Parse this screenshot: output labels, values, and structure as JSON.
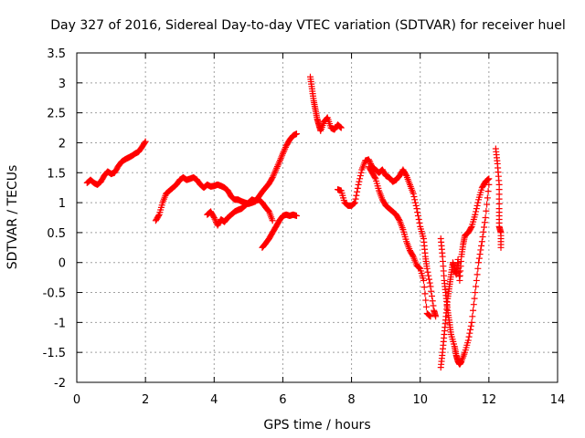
{
  "chart_data": {
    "type": "scatter",
    "title": "Day 327 of 2016, Sidereal Day-to-day VTEC variation (SDTVAR) for receiver huel",
    "xlabel": "GPS time / hours",
    "ylabel": "SDTVAR / TECUs",
    "xlim": [
      0,
      14
    ],
    "ylim": [
      -2,
      3.5
    ],
    "xticks": [
      0,
      2,
      4,
      6,
      8,
      10,
      12,
      14
    ],
    "yticks": [
      -2,
      -1.5,
      -1,
      -0.5,
      0,
      0.5,
      1,
      1.5,
      2,
      2.5,
      3,
      3.5
    ],
    "xtick_labels": [
      "0",
      "2",
      "4",
      "6",
      "8",
      "10",
      "12",
      "14"
    ],
    "ytick_labels": [
      "-2",
      "-1.5",
      "-1",
      "-0.5",
      "0",
      "0.5",
      "1",
      "1.5",
      "2",
      "2.5",
      "3",
      "3.5"
    ],
    "grid": true,
    "marker": "+",
    "color": "#ff0000",
    "series": [
      {
        "segments": [
          [
            [
              0.3,
              1.33
            ],
            [
              0.4,
              1.38
            ],
            [
              0.5,
              1.33
            ],
            [
              0.6,
              1.3
            ],
            [
              0.7,
              1.35
            ],
            [
              0.8,
              1.45
            ],
            [
              0.9,
              1.52
            ],
            [
              1.0,
              1.48
            ],
            [
              1.1,
              1.5
            ],
            [
              1.2,
              1.6
            ],
            [
              1.3,
              1.68
            ],
            [
              1.4,
              1.72
            ],
            [
              1.5,
              1.75
            ],
            [
              1.6,
              1.78
            ],
            [
              1.7,
              1.82
            ],
            [
              1.8,
              1.85
            ],
            [
              1.9,
              1.93
            ],
            [
              2.0,
              2.02
            ]
          ],
          [
            [
              2.3,
              0.7
            ],
            [
              2.4,
              0.8
            ],
            [
              2.5,
              1.0
            ],
            [
              2.6,
              1.15
            ],
            [
              2.7,
              1.2
            ],
            [
              2.8,
              1.25
            ],
            [
              2.9,
              1.3
            ],
            [
              3.0,
              1.38
            ],
            [
              3.1,
              1.42
            ],
            [
              3.2,
              1.38
            ],
            [
              3.3,
              1.4
            ],
            [
              3.4,
              1.42
            ],
            [
              3.5,
              1.38
            ],
            [
              3.6,
              1.3
            ],
            [
              3.7,
              1.25
            ],
            [
              3.8,
              1.3
            ],
            [
              3.9,
              1.27
            ],
            [
              4.0,
              1.28
            ],
            [
              4.1,
              1.3
            ],
            [
              4.2,
              1.28
            ],
            [
              4.3,
              1.25
            ],
            [
              4.4,
              1.2
            ],
            [
              4.5,
              1.1
            ],
            [
              4.6,
              1.05
            ],
            [
              4.7,
              1.05
            ],
            [
              4.8,
              1.02
            ],
            [
              4.9,
              1.0
            ],
            [
              5.0,
              0.98
            ],
            [
              5.1,
              1.0
            ],
            [
              5.2,
              1.02
            ],
            [
              5.3,
              1.1
            ],
            [
              5.4,
              1.18
            ],
            [
              5.5,
              1.25
            ],
            [
              5.6,
              1.32
            ],
            [
              5.7,
              1.42
            ],
            [
              5.8,
              1.55
            ],
            [
              5.9,
              1.68
            ],
            [
              6.0,
              1.82
            ],
            [
              6.1,
              1.95
            ],
            [
              6.2,
              2.05
            ],
            [
              6.3,
              2.12
            ],
            [
              6.4,
              2.15
            ]
          ],
          [
            [
              3.8,
              0.8
            ],
            [
              3.9,
              0.85
            ],
            [
              4.0,
              0.75
            ],
            [
              4.1,
              0.62
            ],
            [
              4.2,
              0.72
            ],
            [
              4.3,
              0.68
            ],
            [
              4.4,
              0.75
            ],
            [
              4.5,
              0.8
            ],
            [
              4.6,
              0.85
            ],
            [
              4.7,
              0.88
            ],
            [
              4.8,
              0.9
            ],
            [
              4.9,
              0.95
            ],
            [
              5.0,
              1.0
            ],
            [
              5.1,
              1.05
            ],
            [
              5.2,
              1.03
            ],
            [
              5.3,
              1.05
            ],
            [
              5.4,
              1.0
            ],
            [
              5.5,
              0.92
            ],
            [
              5.6,
              0.85
            ],
            [
              5.7,
              0.7
            ]
          ],
          [
            [
              5.4,
              0.25
            ],
            [
              5.5,
              0.32
            ],
            [
              5.6,
              0.4
            ],
            [
              5.7,
              0.5
            ],
            [
              5.8,
              0.6
            ],
            [
              5.9,
              0.7
            ],
            [
              6.0,
              0.78
            ],
            [
              6.1,
              0.8
            ],
            [
              6.2,
              0.78
            ],
            [
              6.3,
              0.8
            ],
            [
              6.4,
              0.78
            ]
          ],
          [
            [
              6.8,
              3.1
            ],
            [
              6.85,
              2.9
            ],
            [
              6.9,
              2.7
            ],
            [
              6.95,
              2.55
            ],
            [
              7.0,
              2.4
            ],
            [
              7.05,
              2.3
            ],
            [
              7.1,
              2.2
            ],
            [
              7.2,
              2.35
            ],
            [
              7.3,
              2.42
            ],
            [
              7.4,
              2.25
            ],
            [
              7.5,
              2.22
            ],
            [
              7.6,
              2.3
            ],
            [
              7.7,
              2.25
            ]
          ],
          [
            [
              7.6,
              1.22
            ],
            [
              7.7,
              1.2
            ],
            [
              7.8,
              1.0
            ],
            [
              7.9,
              0.95
            ],
            [
              8.0,
              0.95
            ],
            [
              8.1,
              1.0
            ],
            [
              8.2,
              1.3
            ],
            [
              8.3,
              1.55
            ],
            [
              8.4,
              1.7
            ],
            [
              8.5,
              1.72
            ],
            [
              8.6,
              1.6
            ],
            [
              8.7,
              1.55
            ],
            [
              8.8,
              1.5
            ],
            [
              8.9,
              1.55
            ],
            [
              9.0,
              1.45
            ],
            [
              9.1,
              1.42
            ],
            [
              9.2,
              1.35
            ],
            [
              9.3,
              1.38
            ],
            [
              9.4,
              1.45
            ],
            [
              9.5,
              1.55
            ],
            [
              9.6,
              1.45
            ],
            [
              9.7,
              1.3
            ],
            [
              9.8,
              1.15
            ],
            [
              9.9,
              0.9
            ],
            [
              10.0,
              0.6
            ],
            [
              10.1,
              0.4
            ],
            [
              10.15,
              0.1
            ],
            [
              10.2,
              -0.1
            ],
            [
              10.3,
              -0.4
            ],
            [
              10.4,
              -0.8
            ],
            [
              10.45,
              -0.9
            ]
          ],
          [
            [
              8.5,
              1.6
            ],
            [
              8.6,
              1.5
            ],
            [
              8.7,
              1.4
            ],
            [
              8.8,
              1.2
            ],
            [
              8.9,
              1.05
            ],
            [
              9.0,
              0.95
            ],
            [
              9.1,
              0.9
            ],
            [
              9.2,
              0.85
            ],
            [
              9.3,
              0.8
            ],
            [
              9.4,
              0.7
            ],
            [
              9.5,
              0.55
            ],
            [
              9.6,
              0.35
            ],
            [
              9.7,
              0.2
            ],
            [
              9.8,
              0.1
            ],
            [
              9.9,
              -0.05
            ],
            [
              10.0,
              -0.1
            ],
            [
              10.1,
              -0.3
            ],
            [
              10.2,
              -0.85
            ],
            [
              10.3,
              -0.9
            ]
          ],
          [
            [
              10.6,
              0.4
            ],
            [
              10.65,
              0.1
            ],
            [
              10.7,
              -0.3
            ],
            [
              10.75,
              -0.55
            ],
            [
              10.8,
              -0.8
            ],
            [
              10.85,
              -1.0
            ],
            [
              10.9,
              -1.2
            ],
            [
              11.0,
              -1.4
            ],
            [
              11.05,
              -1.55
            ],
            [
              11.1,
              -1.65
            ],
            [
              11.15,
              -1.7
            ],
            [
              11.2,
              -1.65
            ],
            [
              11.3,
              -1.5
            ],
            [
              11.4,
              -1.3
            ],
            [
              11.5,
              -1.0
            ],
            [
              11.6,
              -0.5
            ],
            [
              11.7,
              0.0
            ],
            [
              11.8,
              0.35
            ],
            [
              11.9,
              0.75
            ],
            [
              12.0,
              1.3
            ]
          ],
          [
            [
              10.6,
              -1.75
            ],
            [
              10.65,
              -1.5
            ],
            [
              10.7,
              -1.2
            ],
            [
              10.75,
              -0.9
            ],
            [
              10.8,
              -0.6
            ],
            [
              10.85,
              -0.4
            ],
            [
              10.9,
              -0.2
            ],
            [
              10.95,
              0.0
            ],
            [
              11.0,
              -0.1
            ],
            [
              11.05,
              -0.2
            ],
            [
              11.1,
              0.05
            ],
            [
              11.15,
              -0.3
            ],
            [
              11.2,
              0.1
            ],
            [
              11.25,
              0.3
            ],
            [
              11.3,
              0.45
            ],
            [
              11.4,
              0.5
            ],
            [
              11.5,
              0.6
            ],
            [
              11.6,
              0.8
            ],
            [
              11.7,
              1.05
            ],
            [
              11.8,
              1.25
            ],
            [
              11.9,
              1.35
            ],
            [
              12.0,
              1.4
            ]
          ],
          [
            [
              12.2,
              1.9
            ],
            [
              12.25,
              1.65
            ],
            [
              12.3,
              1.3
            ],
            [
              12.3,
              0.9
            ],
            [
              12.3,
              0.6
            ],
            [
              12.35,
              0.5
            ],
            [
              12.35,
              0.25
            ]
          ]
        ]
      }
    ]
  }
}
